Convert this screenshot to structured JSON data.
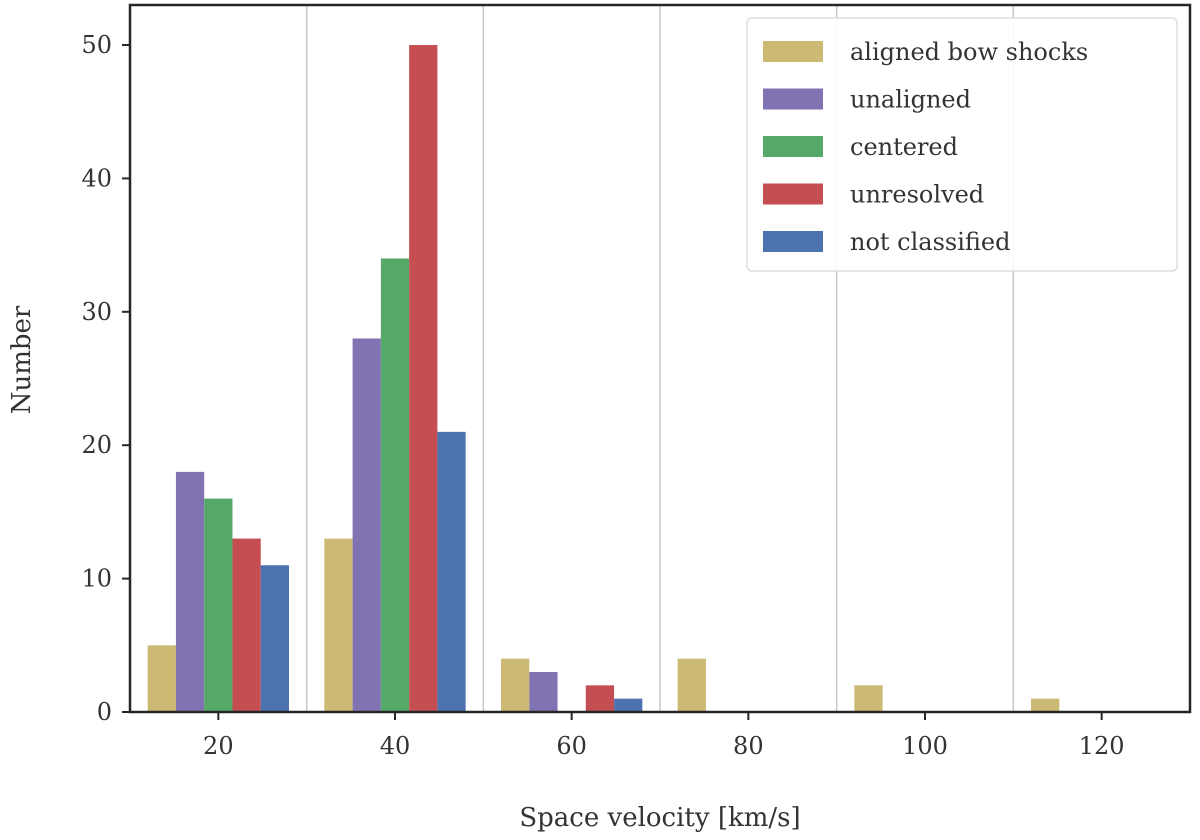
{
  "chart_data": {
    "type": "bar",
    "title": "",
    "xlabel": "Space velocity [km/s]",
    "ylabel": "Number",
    "x_range": [
      10,
      130
    ],
    "ylim": [
      0,
      53
    ],
    "x_ticks": [
      20,
      40,
      60,
      80,
      100,
      120
    ],
    "y_ticks": [
      0,
      10,
      20,
      30,
      40,
      50
    ],
    "bins": [
      [
        10,
        30
      ],
      [
        30,
        50
      ],
      [
        50,
        70
      ],
      [
        70,
        90
      ],
      [
        90,
        110
      ],
      [
        110,
        130
      ]
    ],
    "bin_boundaries": [
      30,
      50,
      70,
      90,
      110
    ],
    "grid": "vertical lines at bin boundaries",
    "legend_position": "top-right",
    "series": [
      {
        "name": "aligned bow shocks",
        "color": "#CCB974",
        "values": [
          5,
          13,
          4,
          4,
          2,
          1
        ]
      },
      {
        "name": "unaligned",
        "color": "#8172B2",
        "values": [
          18,
          28,
          3,
          0,
          0,
          0
        ]
      },
      {
        "name": "centered",
        "color": "#55A868",
        "values": [
          16,
          34,
          0,
          0,
          0,
          0
        ]
      },
      {
        "name": "unresolved",
        "color": "#C44E52",
        "values": [
          13,
          50,
          2,
          0,
          0,
          0
        ]
      },
      {
        "name": "not classified",
        "color": "#4C72B0",
        "values": [
          11,
          21,
          1,
          0,
          0,
          0
        ]
      }
    ]
  }
}
